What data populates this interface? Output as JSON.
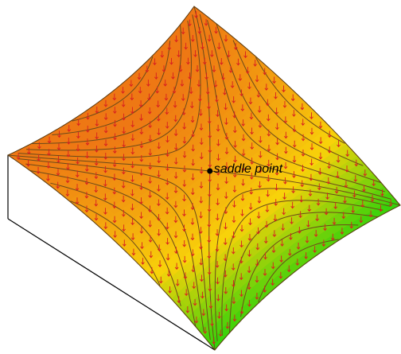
{
  "annotation": "saddle point"
}
